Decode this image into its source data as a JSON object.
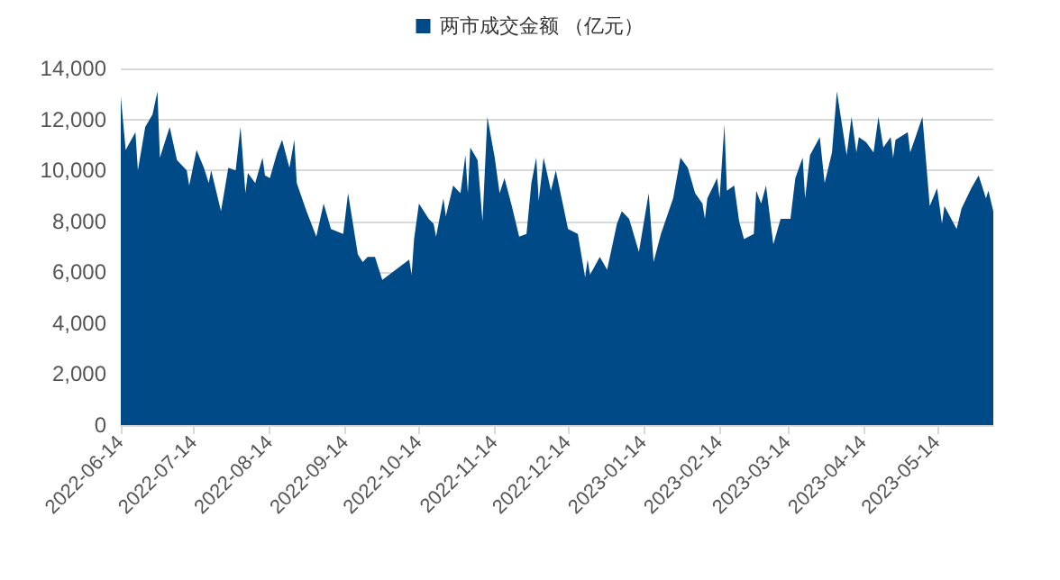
{
  "chart_data": {
    "type": "area",
    "x": [
      "2022-06-14",
      "2022-06-16",
      "2022-06-20",
      "2022-06-21",
      "2022-06-24",
      "2022-06-27",
      "2022-06-29",
      "2022-06-30",
      "2022-07-04",
      "2022-07-07",
      "2022-07-11",
      "2022-07-12",
      "2022-07-15",
      "2022-07-18",
      "2022-07-20",
      "2022-07-21",
      "2022-07-25",
      "2022-07-28",
      "2022-07-31",
      "2022-08-02",
      "2022-08-04",
      "2022-08-05",
      "2022-08-08",
      "2022-08-11",
      "2022-08-12",
      "2022-08-14",
      "2022-08-17",
      "2022-08-19",
      "2022-08-22",
      "2022-08-24",
      "2022-08-25",
      "2022-08-29",
      "2022-09-02",
      "2022-09-05",
      "2022-09-08",
      "2022-09-13",
      "2022-09-15",
      "2022-09-19",
      "2022-09-21",
      "2022-09-23",
      "2022-09-26",
      "2022-09-29",
      "2022-10-10",
      "2022-10-11",
      "2022-10-12",
      "2022-10-14",
      "2022-10-18",
      "2022-10-20",
      "2022-10-21",
      "2022-10-24",
      "2022-10-25",
      "2022-10-28",
      "2022-10-31",
      "2022-11-02",
      "2022-11-03",
      "2022-11-04",
      "2022-11-07",
      "2022-11-09",
      "2022-11-11",
      "2022-11-14",
      "2022-11-16",
      "2022-11-18",
      "2022-11-21",
      "2022-11-24",
      "2022-11-27",
      "2022-11-29",
      "2022-12-01",
      "2022-12-02",
      "2022-12-04",
      "2022-12-07",
      "2022-12-09",
      "2022-12-14",
      "2022-12-18",
      "2022-12-21",
      "2022-12-22",
      "2022-12-23",
      "2022-12-27",
      "2022-12-30",
      "2023-01-03",
      "2023-01-05",
      "2023-01-08",
      "2023-01-12",
      "2023-01-16",
      "2023-01-18",
      "2023-01-21",
      "2023-01-26",
      "2023-01-29",
      "2023-02-01",
      "2023-02-04",
      "2023-02-07",
      "2023-02-08",
      "2023-02-09",
      "2023-02-13",
      "2023-02-14",
      "2023-02-16",
      "2023-02-17",
      "2023-02-20",
      "2023-02-22",
      "2023-02-24",
      "2023-02-28",
      "2023-03-01",
      "2023-03-03",
      "2023-03-05",
      "2023-03-08",
      "2023-03-11",
      "2023-03-15",
      "2023-03-17",
      "2023-03-20",
      "2023-03-21",
      "2023-03-23",
      "2023-03-27",
      "2023-03-29",
      "2023-04-01",
      "2023-04-03",
      "2023-04-07",
      "2023-04-09",
      "2023-04-11",
      "2023-04-12",
      "2023-04-15",
      "2023-04-18",
      "2023-04-20",
      "2023-04-22",
      "2023-04-25",
      "2023-04-26",
      "2023-04-27",
      "2023-05-02",
      "2023-05-03",
      "2023-05-08",
      "2023-05-11",
      "2023-05-14",
      "2023-05-16",
      "2023-05-17",
      "2023-05-22",
      "2023-05-24",
      "2023-05-28",
      "2023-05-31",
      "2023-06-03",
      "2023-06-04",
      "2023-06-06"
    ],
    "series": [
      {
        "name": "两市成交金额 （亿元）",
        "color": "#004a87",
        "values": [
          12900,
          10800,
          11500,
          10000,
          11700,
          12200,
          13100,
          10500,
          11700,
          10400,
          10000,
          9400,
          10800,
          10100,
          9500,
          10000,
          8400,
          10100,
          10000,
          11700,
          9100,
          9900,
          9500,
          10500,
          9800,
          9700,
          10700,
          11200,
          10100,
          11200,
          9500,
          8400,
          7400,
          8700,
          7700,
          7500,
          9100,
          6700,
          6400,
          6600,
          6600,
          5700,
          6500,
          5900,
          7300,
          8700,
          8100,
          7900,
          7400,
          8900,
          8200,
          9400,
          9100,
          10600,
          9100,
          10900,
          10400,
          8000,
          12100,
          10500,
          9100,
          9700,
          8600,
          7400,
          7500,
          9500,
          10500,
          8800,
          10500,
          9200,
          10000,
          7700,
          7500,
          5800,
          6500,
          5900,
          6600,
          6100,
          7900,
          8400,
          8100,
          6800,
          9100,
          6400,
          7500,
          8900,
          10500,
          10100,
          9100,
          8700,
          8100,
          8900,
          9700,
          8900,
          11800,
          9200,
          9400,
          8000,
          7300,
          7500,
          9200,
          8700,
          9400,
          7100,
          8100,
          8100,
          9700,
          10500,
          8900,
          10600,
          11300,
          9500,
          10700,
          13100,
          10600,
          12100,
          10700,
          11300,
          11100,
          10700,
          12100,
          10900,
          11300,
          10500,
          11200,
          11500,
          10700,
          12100,
          8600,
          9300,
          7900,
          8600,
          7700,
          8500,
          9300,
          9800,
          8900,
          9200,
          8400
        ]
      }
    ],
    "xlim": [
      "2022-06-14",
      "2023-06-06"
    ],
    "xticks": [
      "2022-06-14",
      "2022-07-14",
      "2022-08-14",
      "2022-09-14",
      "2022-10-14",
      "2022-11-14",
      "2022-12-14",
      "2023-01-14",
      "2023-02-14",
      "2023-03-14",
      "2023-04-14",
      "2023-05-14"
    ],
    "ylim": [
      0,
      14000
    ],
    "yticks": [
      0,
      {
        "value": 2000,
        "label": "2,000"
      },
      {
        "value": 4000,
        "label": "4,000"
      },
      {
        "value": 6000,
        "label": "6,000"
      },
      {
        "value": 8000,
        "label": "8,000"
      },
      {
        "value": 10000,
        "label": "10,000"
      },
      {
        "value": 12000,
        "label": "12,000"
      },
      {
        "value": 14000,
        "label": "14,000"
      }
    ],
    "grid": "y",
    "legend": "top"
  }
}
